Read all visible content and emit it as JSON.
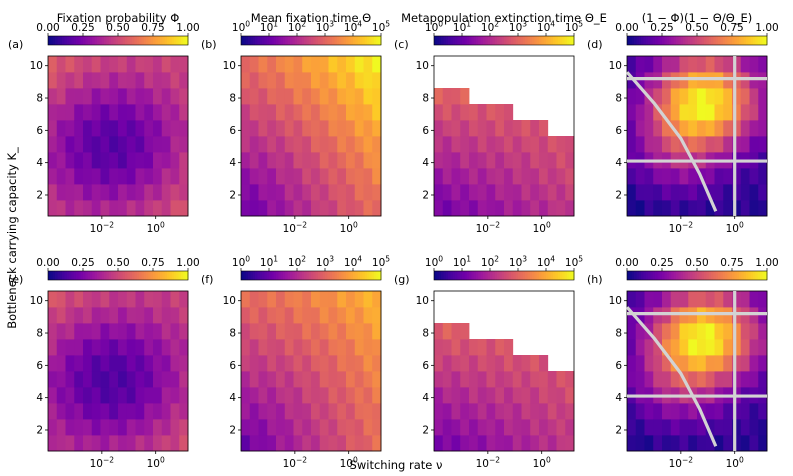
{
  "figure": {
    "ylabel": "Bottleneck carrying capacity K_",
    "xlabel": "Switching rate ν",
    "x_tick_labels": [
      "10^-2",
      "10^0"
    ],
    "y_tick_labels": [
      "2",
      "4",
      "6",
      "8",
      "10"
    ]
  },
  "columns": [
    {
      "title": "Fixation probability Φ",
      "colorbar_ticks": [
        "0.00",
        "0.25",
        "0.50",
        "0.75",
        "1.00"
      ],
      "scale": "linear",
      "range": [
        0,
        1
      ]
    },
    {
      "title": "Mean fixation time Θ",
      "colorbar_ticks": [
        "10^0",
        "10^1",
        "10^2",
        "10^3",
        "10^4",
        "10^5"
      ],
      "scale": "log",
      "range": [
        1,
        100000
      ]
    },
    {
      "title": "Metapopulation extinction time Θ_E",
      "colorbar_ticks": [
        "10^0",
        "10^1",
        "10^2",
        "10^3",
        "10^4",
        "10^5"
      ],
      "scale": "log",
      "range": [
        1,
        100000
      ]
    },
    {
      "title": "(1 − Φ)(1 − Θ/Θ_E)",
      "colorbar_ticks": [
        "0.00",
        "0.25",
        "0.50",
        "0.75",
        "1.00"
      ],
      "scale": "linear",
      "range": [
        0,
        1
      ]
    }
  ],
  "panel_labels": [
    "(a)",
    "(b)",
    "(c)",
    "(d)",
    "(e)",
    "(f)",
    "(g)",
    "(h)"
  ],
  "colormap": [
    "#0d0887",
    "#46039f",
    "#7201a8",
    "#9c179e",
    "#bd3786",
    "#d8576b",
    "#ed7953",
    "#fb9f3a",
    "#fdca26",
    "#f0f921"
  ],
  "overlay_line_color": "#d3d3d3",
  "chart_data": {
    "type": "heatmap",
    "grid": {
      "x_log10_range": [
        -4,
        1.2
      ],
      "y_range": [
        1,
        10
      ],
      "nx": 16,
      "ny": 10
    },
    "panels": [
      {
        "id": "a",
        "metric": "fixation_probability",
        "approx_min": 0.0,
        "approx_max": 0.8,
        "pattern": "high near edges, minimum near nu~1e-2, K~5"
      },
      {
        "id": "b",
        "metric": "mean_fixation_time_log10",
        "approx_min": 0.5,
        "approx_max": 5,
        "pattern": "increases with nu and K, maximum top-right"
      },
      {
        "id": "c",
        "metric": "metapopulation_extinction_time_log10",
        "approx_min": 0.5,
        "approx_max": 4.2,
        "pattern": "finite below a staircase boundary; blank (white) above it",
        "boundary_K_by_column": [
          8.7,
          8.7,
          8.2,
          8.2,
          7.7,
          7.7,
          7.2,
          7.2,
          7.2,
          6.7,
          6.7,
          6.2,
          6.2,
          5.7,
          5.7,
          5.2
        ]
      },
      {
        "id": "d",
        "metric": "(1-Phi)(1-Theta/Theta_E)",
        "approx_min": 0.0,
        "approx_max": 0.95,
        "pattern": "peak at large K and nu~1"
      },
      {
        "id": "e",
        "metric": "fixation_probability",
        "approx_min": 0.0,
        "approx_max": 0.8,
        "pattern": "similar to (a)"
      },
      {
        "id": "f",
        "metric": "mean_fixation_time_log10",
        "approx_min": 0.5,
        "approx_max": 4.2,
        "pattern": "similar to (b), lower maximum"
      },
      {
        "id": "g",
        "metric": "metapopulation_extinction_time_log10",
        "approx_min": 0.5,
        "approx_max": 4.2,
        "pattern": "finite below a staircase boundary; blank above",
        "boundary_K_by_column": [
          8.7,
          8.7,
          8.2,
          8.2,
          7.7,
          7.7,
          7.7,
          7.2,
          7.2,
          6.7,
          6.7,
          6.2,
          6.2,
          5.7,
          5.7,
          5.2
        ]
      },
      {
        "id": "h",
        "metric": "(1-Phi)(1-Theta/Theta_E)",
        "approx_min": 0.0,
        "approx_max": 0.95,
        "pattern": "similar to (d)"
      }
    ],
    "overlay_lines": {
      "horizontal_K": [
        9.2,
        4.1
      ],
      "vertical_log10_nu": [
        0
      ],
      "curve": [
        [
          -4,
          9.6
        ],
        [
          -3,
          7.7
        ],
        [
          -2,
          5.5
        ],
        [
          -1.3,
          3.3
        ],
        [
          -0.7,
          1
        ]
      ]
    }
  }
}
